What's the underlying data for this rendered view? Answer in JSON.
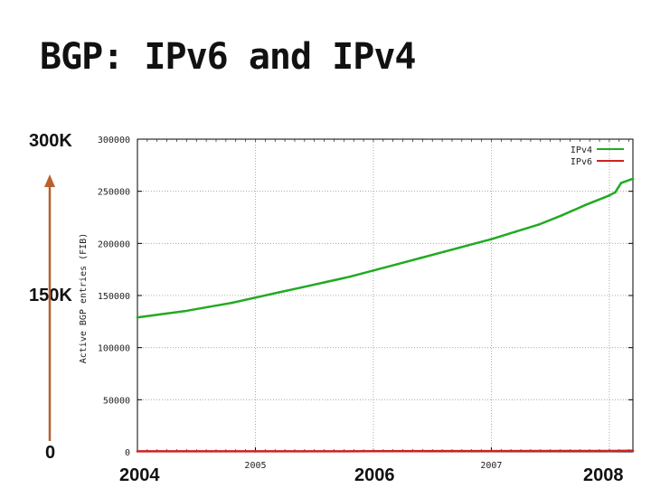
{
  "slide": {
    "title": "BGP: IPv6 and IPv4",
    "left_labels": {
      "top": "300K",
      "mid": "150K",
      "bottom": "0"
    },
    "bottom_labels": [
      "2004",
      "2006",
      "2008"
    ],
    "arrow_color": "#b8612f"
  },
  "chart_data": {
    "type": "line",
    "title": "",
    "xlabel": "",
    "ylabel": "Active BGP entries (FIB)",
    "xlim": [
      2004.0,
      2008.2
    ],
    "ylim": [
      0,
      300000
    ],
    "yticks": [
      0,
      50000,
      100000,
      150000,
      200000,
      250000,
      300000
    ],
    "xticks": [
      {
        "x": 2005.0,
        "label": "2005"
      },
      {
        "x": 2007.0,
        "label": "2007"
      }
    ],
    "grid": true,
    "legend_position": "top-right",
    "series": [
      {
        "name": "IPv4",
        "color": "#22aa22",
        "x": [
          2004.0,
          2004.2,
          2004.4,
          2004.6,
          2004.8,
          2005.0,
          2005.2,
          2005.4,
          2005.6,
          2005.8,
          2006.0,
          2006.2,
          2006.4,
          2006.6,
          2006.8,
          2007.0,
          2007.2,
          2007.4,
          2007.6,
          2007.8,
          2008.0,
          2008.05,
          2008.1,
          2008.2
        ],
        "values": [
          129000,
          132000,
          135000,
          139000,
          143000,
          148000,
          153000,
          158000,
          163000,
          168000,
          174000,
          180000,
          186000,
          192000,
          198000,
          204000,
          211000,
          218000,
          227000,
          237000,
          246000,
          249000,
          258000,
          262000
        ]
      },
      {
        "name": "IPv6",
        "color": "#cc2222",
        "x": [
          2004.0,
          2005.0,
          2006.0,
          2007.0,
          2008.0,
          2008.2
        ],
        "values": [
          500,
          550,
          650,
          750,
          900,
          1000
        ]
      }
    ]
  }
}
